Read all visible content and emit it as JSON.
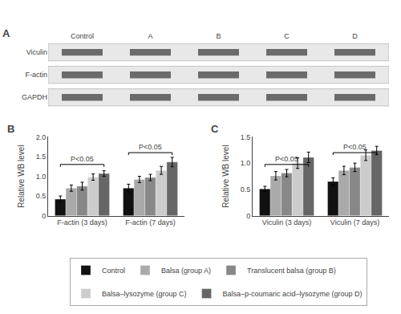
{
  "chart_data": [
    {
      "type": "blot",
      "title": "A",
      "categories": [
        "Control",
        "A",
        "B",
        "C",
        "D"
      ],
      "rows": [
        "Viculin",
        "F-actin",
        "GAPDH"
      ]
    },
    {
      "type": "bar",
      "title": "B",
      "ylabel": "Relative WB level",
      "categories": [
        "F-actin (3 days)",
        "F-actin (7 days)"
      ],
      "series": [
        {
          "name": "Control",
          "color": "#111111",
          "values": [
            0.42,
            0.7
          ],
          "errors": [
            0.08,
            0.1
          ]
        },
        {
          "name": "Balsa (group A)",
          "color": "#aaaaaa",
          "values": [
            0.7,
            0.92
          ],
          "errors": [
            0.08,
            0.08
          ]
        },
        {
          "name": "Translucent balsa (group B)",
          "color": "#888888",
          "values": [
            0.75,
            0.97
          ],
          "errors": [
            0.1,
            0.08
          ]
        },
        {
          "name": "Balsa–lysozyme (group C)",
          "color": "#cccccc",
          "values": [
            0.98,
            1.15
          ],
          "errors": [
            0.08,
            0.1
          ]
        },
        {
          "name": "Balsa–p-coumaric acid–lysozyme (group D)",
          "color": "#666666",
          "values": [
            1.07,
            1.36
          ],
          "errors": [
            0.07,
            0.12
          ]
        }
      ],
      "ylim": [
        0,
        2.0
      ],
      "yticks": [
        0,
        0.5,
        {
          "value": 1.0,
          "label": "1.0"
        },
        1.5,
        {
          "value": 2.0,
          "label": "2.0"
        }
      ],
      "annotations": [
        {
          "text": "P<0.05",
          "category": "F-actin (3 days)"
        },
        {
          "text": "P<0.05",
          "category": "F-actin (7 days)"
        }
      ],
      "grid": false,
      "legend": "bottom"
    },
    {
      "type": "bar",
      "title": "C",
      "ylabel": "Relative WB level",
      "categories": [
        "Viculin (3 days)",
        "Viculin (7 days)"
      ],
      "series": [
        {
          "name": "Control",
          "color": "#111111",
          "values": [
            0.51,
            0.65
          ],
          "errors": [
            0.05,
            0.07
          ]
        },
        {
          "name": "Balsa (group A)",
          "color": "#aaaaaa",
          "values": [
            0.76,
            0.86
          ],
          "errors": [
            0.08,
            0.08
          ]
        },
        {
          "name": "Translucent balsa (group B)",
          "color": "#888888",
          "values": [
            0.81,
            0.92
          ],
          "errors": [
            0.07,
            0.08
          ]
        },
        {
          "name": "Balsa–lysozyme (group C)",
          "color": "#cccccc",
          "values": [
            1.0,
            1.15
          ],
          "errors": [
            0.1,
            0.1
          ]
        },
        {
          "name": "Balsa–p-coumaric acid–lysozyme (group D)",
          "color": "#666666",
          "values": [
            1.11,
            1.24
          ],
          "errors": [
            0.1,
            0.08
          ]
        }
      ],
      "ylim": [
        0,
        1.5
      ],
      "yticks": [
        0,
        0.5,
        {
          "value": 1.0,
          "label": "1.0"
        },
        1.5
      ],
      "annotations": [
        {
          "text": "P<0.05",
          "category": "Viculin (3 days)"
        },
        {
          "text": "P<0.05",
          "category": "Viculin (7 days)"
        }
      ],
      "grid": false
    }
  ]
}
